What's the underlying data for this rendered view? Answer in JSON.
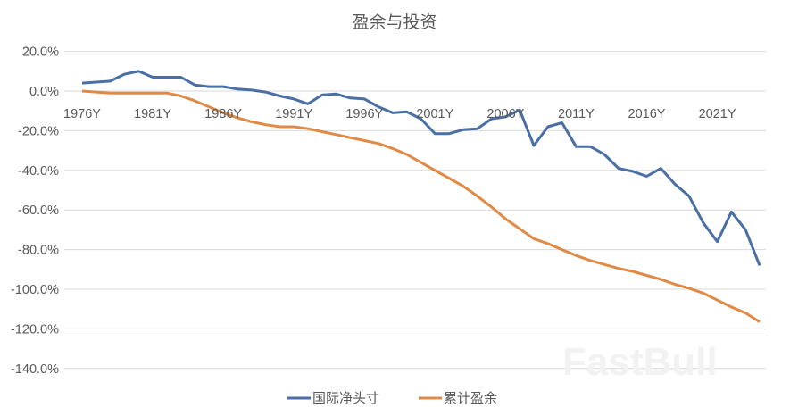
{
  "chart_data": {
    "type": "line",
    "title": "盈余与投资",
    "xlabel": "",
    "ylabel": "",
    "ylim": [
      -140,
      20
    ],
    "yticks": [
      "20.0%",
      "0.0%",
      "-20.0%",
      "-40.0%",
      "-60.0%",
      "-80.0%",
      "-100.0%",
      "-120.0%",
      "-140.0%"
    ],
    "ytick_values": [
      20,
      0,
      -20,
      -40,
      -60,
      -80,
      -100,
      -120,
      -140
    ],
    "xtick_labels": [
      "1976Y",
      "1981Y",
      "1986Y",
      "1991Y",
      "1996Y",
      "2001Y",
      "2006Y",
      "2011Y",
      "2016Y",
      "2021Y"
    ],
    "grid": true,
    "legend_position": "bottom",
    "x": [
      "1976Y",
      "1977Y",
      "1978Y",
      "1979Y",
      "1980Y",
      "1981Y",
      "1982Y",
      "1983Y",
      "1984Y",
      "1985Y",
      "1986Y",
      "1987Y",
      "1988Y",
      "1989Y",
      "1990Y",
      "1991Y",
      "1992Y",
      "1993Y",
      "1994Y",
      "1995Y",
      "1996Y",
      "1997Y",
      "1998Y",
      "1999Y",
      "2000Y",
      "2001Y",
      "2002Y",
      "2003Y",
      "2004Y",
      "2005Y",
      "2006Y",
      "2007Y",
      "2008Y",
      "2009Y",
      "2010Y",
      "2011Y",
      "2012Y",
      "2013Y",
      "2014Y",
      "2015Y",
      "2016Y",
      "2017Y",
      "2018Y",
      "2019Y",
      "2020Y",
      "2021Y",
      "2022Y",
      "2023Y",
      "2024Y"
    ],
    "series": [
      {
        "name": "国际净头寸",
        "color": "#4a6fa5",
        "values": [
          4,
          4.5,
          5,
          8.5,
          10,
          7,
          7,
          7,
          3,
          2.2,
          2.2,
          1,
          0.5,
          -0.5,
          -2.5,
          -4,
          -6.5,
          -2,
          -1.5,
          -3.5,
          -4,
          -8,
          -11,
          -10.5,
          -14,
          -21.5,
          -21.5,
          -19.5,
          -19,
          -14,
          -13,
          -9.5,
          -27.5,
          -18,
          -16,
          -28,
          -28,
          -32,
          -39,
          -40.5,
          -43,
          -39,
          -47,
          -53,
          -66.5,
          -76,
          -61,
          -70,
          -88
        ]
      },
      {
        "name": "累计盈余",
        "color": "#e08a45",
        "values": [
          0,
          -0.5,
          -1,
          -1,
          -1,
          -1,
          -1,
          -2.5,
          -5,
          -8,
          -11,
          -13.5,
          -15.5,
          -17,
          -18,
          -18,
          -19,
          -20.5,
          -22,
          -23.5,
          -25,
          -26.5,
          -29,
          -32,
          -36,
          -40,
          -44,
          -48,
          -53,
          -58.5,
          -64.5,
          -69.5,
          -74.5,
          -77,
          -80,
          -83,
          -85.5,
          -87.5,
          -89.5,
          -91,
          -93,
          -95,
          -97.5,
          -99.5,
          -102,
          -105.5,
          -109,
          -112,
          -116.5
        ]
      }
    ]
  },
  "watermark": "FastBull"
}
